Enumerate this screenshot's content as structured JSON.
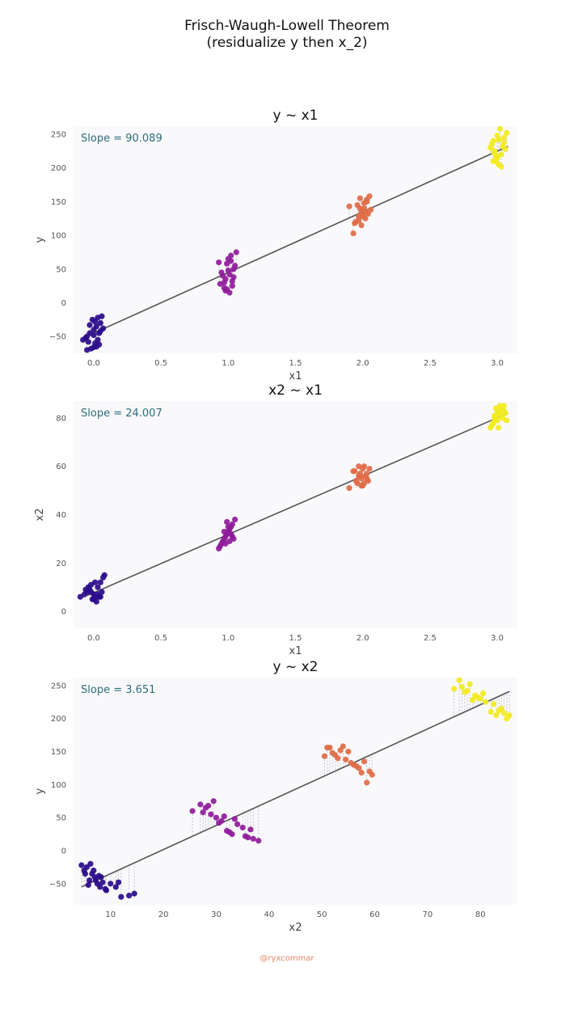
{
  "figure": {
    "title_line1": "Frisch-Waugh-Lowell Theorem",
    "title_line2": "(residualize y then x_2)",
    "credit": "@ryxcommar",
    "palette": {
      "cluster0": "#2a0a8a",
      "cluster1": "#8f1b9a",
      "cluster2": "#e06b47",
      "cluster3": "#f2ea1e",
      "fit_line": "#555555",
      "slope_text": "#2e6d7a",
      "panel_bg": "#f9f9fb",
      "residual_line": "#b8b8c4"
    }
  },
  "chart_data": [
    {
      "type": "scatter",
      "title": "y ~ x1",
      "xlabel": "x1",
      "ylabel": "y",
      "xlim": [
        -0.15,
        3.15
      ],
      "ylim": [
        -75,
        262
      ],
      "xticks": [
        0.0,
        0.5,
        1.0,
        1.5,
        2.0,
        2.5,
        3.0
      ],
      "xtick_labels": [
        "0.0",
        "0.5",
        "1.0",
        "1.5",
        "2.0",
        "2.5",
        "3.0"
      ],
      "yticks": [
        -50,
        0,
        50,
        100,
        150,
        200,
        250
      ],
      "ytick_labels": [
        "−50",
        "0",
        "50",
        "100",
        "150",
        "200",
        "250"
      ],
      "grid": false,
      "annotation": "Slope = 90.089",
      "fit": {
        "x": [
          0.0,
          3.08
        ],
        "y": [
          -45,
          232
        ]
      },
      "residual_lines": true,
      "series": [
        {
          "x": [
            -0.08,
            -0.05,
            -0.03,
            0.0,
            0.02,
            0.05,
            -0.01,
            0.03,
            0.06,
            -0.04,
            0.01,
            0.04,
            -0.06,
            0.0,
            0.02,
            -0.02,
            0.05,
            0.07,
            -0.03,
            0.01,
            0.03,
            -0.05,
            0.0,
            0.04
          ],
          "y": [
            -55,
            -50,
            -45,
            -40,
            -35,
            -30,
            -25,
            -22,
            -20,
            -58,
            -60,
            -62,
            -52,
            -48,
            -65,
            -68,
            -42,
            -38,
            -33,
            -28,
            -55,
            -70,
            -66,
            -45
          ]
        },
        {
          "x": [
            0.93,
            0.95,
            0.97,
            0.99,
            1.01,
            1.03,
            1.05,
            0.96,
            0.98,
            1.0,
            1.02,
            1.04,
            0.94,
            1.06,
            0.99,
            1.01,
            0.97,
            1.03,
            1.0,
            0.98,
            1.02,
            1.04
          ],
          "y": [
            60,
            45,
            30,
            20,
            15,
            25,
            55,
            40,
            35,
            65,
            70,
            50,
            28,
            75,
            58,
            42,
            22,
            32,
            48,
            18,
            62,
            38
          ]
        },
        {
          "x": [
            1.9,
            1.93,
            1.95,
            1.97,
            1.99,
            2.01,
            2.03,
            2.05,
            1.96,
            1.98,
            2.0,
            2.02,
            2.04,
            1.94,
            2.06,
            1.99,
            2.01,
            1.97,
            2.03,
            2.0,
            1.98,
            2.02
          ],
          "y": [
            143,
            103,
            120,
            128,
            135,
            140,
            150,
            158,
            145,
            155,
            130,
            125,
            132,
            118,
            138,
            115,
            148,
            122,
            153,
            128,
            140,
            135
          ]
        },
        {
          "x": [
            2.95,
            2.97,
            2.99,
            3.01,
            3.03,
            3.05,
            3.07,
            2.96,
            2.98,
            3.0,
            3.02,
            3.04,
            3.06,
            2.97,
            3.01,
            2.99,
            3.03,
            3.05,
            3.0,
            2.98
          ],
          "y": [
            230,
            240,
            210,
            205,
            220,
            245,
            252,
            235,
            225,
            215,
            258,
            232,
            228,
            210,
            242,
            218,
            202,
            238,
            248,
            222
          ]
        }
      ]
    },
    {
      "type": "scatter",
      "title": "x2 ~ x1",
      "xlabel": "x1",
      "ylabel": "x2",
      "xlim": [
        -0.15,
        3.15
      ],
      "ylim": [
        -7,
        87
      ],
      "xticks": [
        0.0,
        0.5,
        1.0,
        1.5,
        2.0,
        2.5,
        3.0
      ],
      "xtick_labels": [
        "0.0",
        "0.5",
        "1.0",
        "1.5",
        "2.0",
        "2.5",
        "3.0"
      ],
      "yticks": [
        0,
        20,
        40,
        60,
        80
      ],
      "ytick_labels": [
        "0",
        "20",
        "40",
        "60",
        "80"
      ],
      "grid": false,
      "annotation": "Slope = 24.007",
      "fit": {
        "x": [
          -0.05,
          3.08
        ],
        "y": [
          6.5,
          82
        ]
      },
      "residual_lines": false,
      "series": [
        {
          "x": [
            -0.1,
            -0.07,
            -0.05,
            -0.03,
            -0.01,
            0.01,
            0.03,
            0.05,
            0.07,
            -0.04,
            -0.02,
            0.0,
            0.02,
            0.04,
            0.06,
            -0.06,
            0.0,
            0.03,
            0.08,
            0.05,
            -0.02,
            0.01
          ],
          "y": [
            6,
            7,
            8,
            9,
            5,
            6,
            7,
            12,
            14,
            10,
            11,
            5,
            4,
            6,
            8,
            9,
            7,
            10,
            15,
            6,
            8,
            12
          ]
        },
        {
          "x": [
            0.93,
            0.95,
            0.97,
            0.99,
            1.01,
            1.03,
            1.05,
            0.96,
            0.98,
            1.0,
            1.02,
            1.04,
            0.94,
            0.99,
            1.01,
            0.97,
            1.03,
            1.0,
            0.98,
            1.02
          ],
          "y": [
            26,
            28,
            30,
            32,
            34,
            36,
            38,
            29,
            31,
            33,
            35,
            30,
            27,
            37,
            29,
            33,
            31,
            35,
            28,
            32
          ]
        },
        {
          "x": [
            1.9,
            1.93,
            1.95,
            1.97,
            1.99,
            2.01,
            2.03,
            2.05,
            1.96,
            1.98,
            2.0,
            2.02,
            2.04,
            1.94,
            1.99,
            2.01,
            1.97,
            2.03,
            2.0,
            1.98
          ],
          "y": [
            51,
            58,
            54,
            56,
            52,
            60,
            55,
            59,
            53,
            57,
            59,
            56,
            54,
            58,
            55,
            53,
            60,
            57,
            52,
            56
          ]
        },
        {
          "x": [
            2.95,
            2.97,
            2.99,
            3.01,
            3.03,
            3.05,
            3.07,
            2.96,
            2.98,
            3.0,
            3.02,
            3.04,
            3.06,
            2.97,
            3.01,
            2.99,
            3.03,
            3.05,
            3.0,
            2.98
          ],
          "y": [
            76,
            78,
            80,
            82,
            84,
            85,
            79,
            77,
            81,
            83,
            85,
            80,
            82,
            78,
            76,
            84,
            81,
            83,
            79,
            80
          ]
        }
      ]
    },
    {
      "type": "scatter",
      "title": "y ~ x2",
      "xlabel": "x2",
      "ylabel": "y",
      "xlim": [
        3,
        87
      ],
      "ylim": [
        -82,
        262
      ],
      "xticks": [
        10,
        20,
        30,
        40,
        50,
        60,
        70,
        80
      ],
      "xtick_labels": [
        "10",
        "20",
        "30",
        "40",
        "50",
        "60",
        "70",
        "80"
      ],
      "yticks": [
        -50,
        0,
        50,
        100,
        150,
        200,
        250
      ],
      "ytick_labels": [
        "−50",
        "0",
        "50",
        "100",
        "150",
        "200",
        "250"
      ],
      "grid": false,
      "annotation": "Slope = 3.651",
      "fit": {
        "x": [
          4.5,
          85.5
        ],
        "y": [
          -55,
          241
        ]
      },
      "residual_lines": true,
      "series": [
        {
          "x": [
            4.5,
            5.0,
            5.5,
            6.0,
            6.5,
            7.0,
            7.5,
            8.0,
            8.5,
            9.0,
            5.2,
            6.2,
            7.2,
            8.2,
            9.2,
            10.0,
            11.0,
            11.5,
            12.0,
            13.5,
            14.5,
            6.8,
            5.8,
            7.8
          ],
          "y": [
            -22,
            -30,
            -25,
            -45,
            -35,
            -40,
            -50,
            -55,
            -48,
            -58,
            -35,
            -20,
            -45,
            -40,
            -60,
            -50,
            -55,
            -48,
            -70,
            -68,
            -65,
            -30,
            -52,
            -38
          ]
        },
        {
          "x": [
            25.5,
            27.0,
            28.0,
            29.0,
            30.0,
            31.0,
            32.0,
            33.0,
            34.0,
            35.0,
            36.0,
            37.0,
            38.0,
            28.5,
            29.5,
            30.5,
            32.5,
            33.5,
            35.5,
            36.5,
            27.5,
            31.5
          ],
          "y": [
            60,
            70,
            65,
            55,
            50,
            45,
            30,
            25,
            40,
            35,
            20,
            18,
            15,
            68,
            75,
            42,
            28,
            48,
            22,
            32,
            58,
            52
          ]
        },
        {
          "x": [
            50.5,
            51.0,
            52.0,
            53.0,
            54.0,
            55.0,
            56.0,
            57.0,
            58.0,
            59.0,
            59.5,
            53.5,
            54.5,
            55.5,
            56.5,
            57.5,
            58.5,
            52.5,
            51.5
          ],
          "y": [
            143,
            156,
            148,
            140,
            158,
            150,
            130,
            125,
            135,
            120,
            115,
            152,
            138,
            133,
            128,
            118,
            103,
            145,
            156
          ]
        },
        {
          "x": [
            75.0,
            76.0,
            77.0,
            78.0,
            79.0,
            80.0,
            81.0,
            82.0,
            83.0,
            84.0,
            85.0,
            85.5,
            76.5,
            77.5,
            78.5,
            79.5,
            80.5,
            82.5,
            83.5,
            84.5
          ],
          "y": [
            245,
            258,
            240,
            252,
            235,
            230,
            225,
            210,
            205,
            215,
            200,
            205,
            248,
            242,
            228,
            232,
            238,
            222,
            212,
            208
          ]
        }
      ]
    }
  ]
}
